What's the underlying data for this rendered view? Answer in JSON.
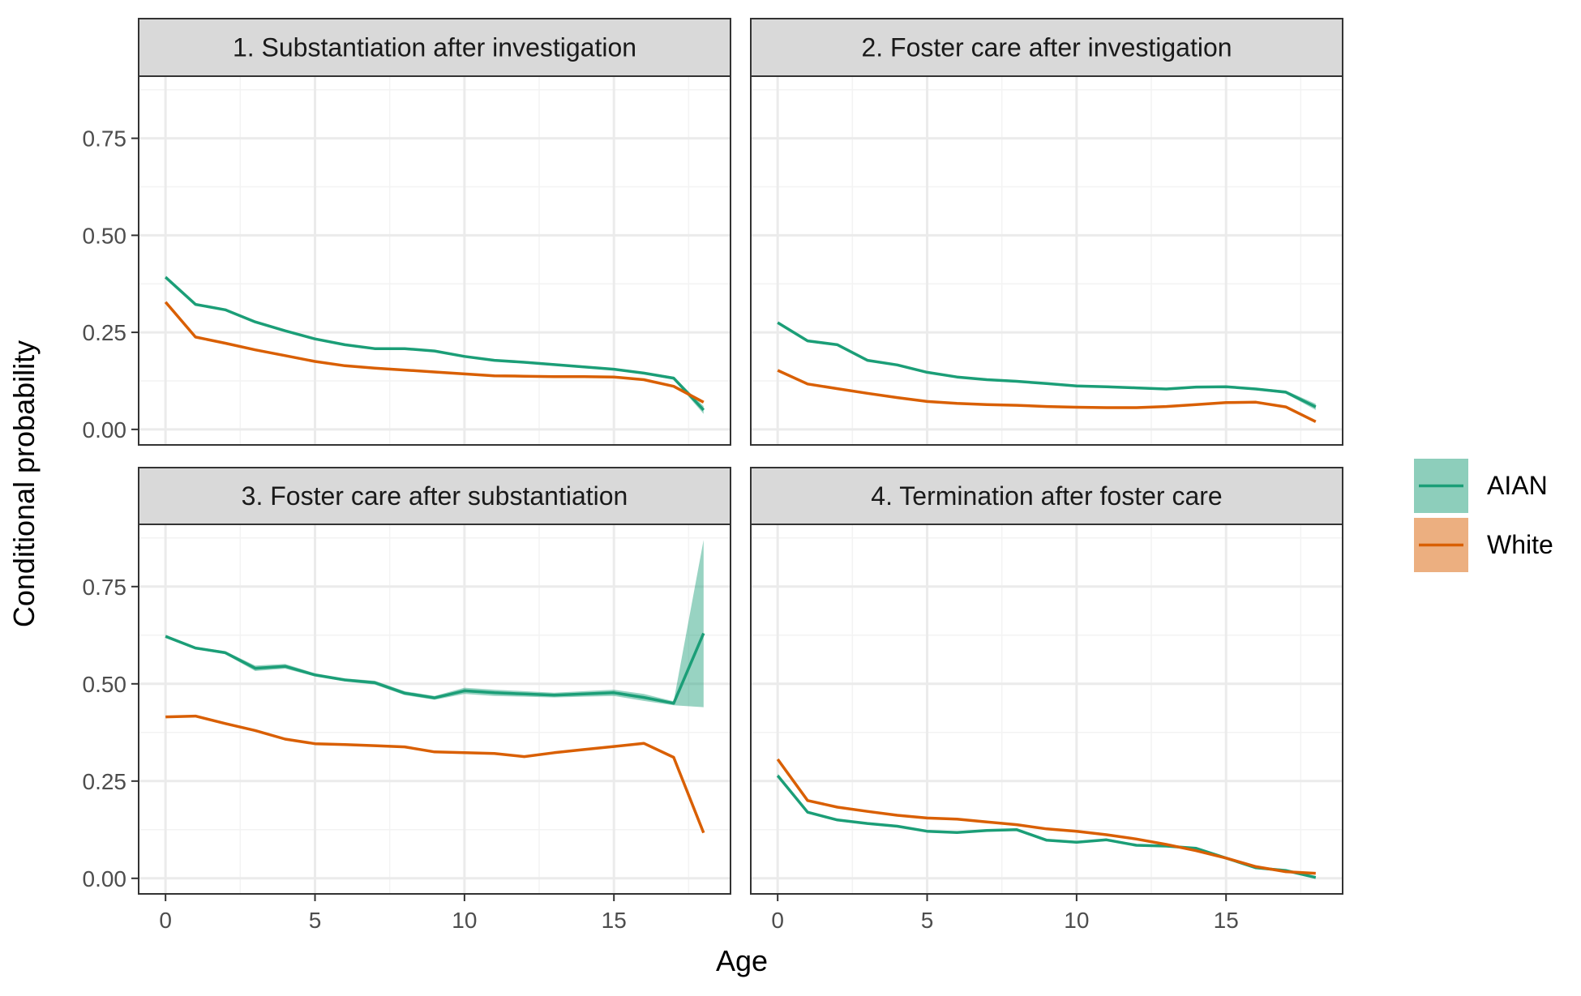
{
  "chart_data": {
    "type": "line",
    "facets_layout": "2x2",
    "xlabel": "Age",
    "ylabel": "Conditional probability",
    "xlim": [
      -0.9,
      18.9
    ],
    "ylim": [
      -0.04,
      0.91
    ],
    "x_ticks": [
      0,
      5,
      10,
      15
    ],
    "x_tick_labels": [
      "0",
      "5",
      "10",
      "15"
    ],
    "y_ticks": [
      0,
      0.25,
      0.5,
      0.75
    ],
    "y_tick_labels": [
      "0.00",
      "0.25",
      "0.50",
      "0.75"
    ],
    "grid": true,
    "legend": {
      "position": "right",
      "entries": [
        {
          "name": "AIAN",
          "color": "#1b9e77"
        },
        {
          "name": "White",
          "color": "#d95f02"
        }
      ]
    },
    "colors": {
      "AIAN": "#1b9e77",
      "White": "#d95f02",
      "panel_border": "#333333",
      "strip_fill": "#d9d9d9",
      "grid_major": "#ebebeb",
      "grid_minor": "#f3f3f3"
    },
    "x": [
      0,
      1,
      2,
      3,
      4,
      5,
      6,
      7,
      8,
      9,
      10,
      11,
      12,
      13,
      14,
      15,
      16,
      17,
      18
    ],
    "facets": [
      {
        "title": "1. Substantiation after investigation",
        "series": [
          {
            "name": "AIAN",
            "values": [
              0.392,
              0.322,
              0.308,
              0.277,
              0.254,
              0.233,
              0.218,
              0.208,
              0.208,
              0.202,
              0.188,
              0.178,
              0.173,
              0.167,
              0.161,
              0.155,
              0.145,
              0.132,
              0.05
            ],
            "lower": [
              0.388,
              0.319,
              0.305,
              0.274,
              0.251,
              0.23,
              0.215,
              0.205,
              0.205,
              0.199,
              0.185,
              0.175,
              0.17,
              0.164,
              0.158,
              0.152,
              0.142,
              0.128,
              0.04
            ],
            "upper": [
              0.396,
              0.325,
              0.311,
              0.28,
              0.257,
              0.236,
              0.221,
              0.211,
              0.211,
              0.205,
              0.191,
              0.181,
              0.176,
              0.17,
              0.164,
              0.158,
              0.148,
              0.136,
              0.06
            ]
          },
          {
            "name": "White",
            "values": [
              0.328,
              0.238,
              0.222,
              0.205,
              0.19,
              0.175,
              0.164,
              0.158,
              0.153,
              0.148,
              0.143,
              0.138,
              0.137,
              0.136,
              0.136,
              0.135,
              0.128,
              0.111,
              0.07
            ]
          }
        ]
      },
      {
        "title": "2. Foster care after investigation",
        "series": [
          {
            "name": "AIAN",
            "values": [
              0.275,
              0.228,
              0.218,
              0.178,
              0.166,
              0.147,
              0.135,
              0.128,
              0.124,
              0.118,
              0.112,
              0.11,
              0.107,
              0.104,
              0.109,
              0.11,
              0.104,
              0.096,
              0.058
            ],
            "lower": [
              0.272,
              0.225,
              0.215,
              0.175,
              0.163,
              0.144,
              0.132,
              0.125,
              0.121,
              0.115,
              0.109,
              0.107,
              0.104,
              0.101,
              0.106,
              0.107,
              0.101,
              0.092,
              0.05
            ],
            "upper": [
              0.278,
              0.231,
              0.221,
              0.181,
              0.169,
              0.15,
              0.138,
              0.131,
              0.127,
              0.121,
              0.115,
              0.113,
              0.11,
              0.107,
              0.112,
              0.113,
              0.107,
              0.1,
              0.066
            ]
          },
          {
            "name": "White",
            "values": [
              0.152,
              0.117,
              0.105,
              0.093,
              0.082,
              0.072,
              0.067,
              0.064,
              0.062,
              0.059,
              0.057,
              0.056,
              0.056,
              0.059,
              0.064,
              0.069,
              0.07,
              0.058,
              0.02
            ]
          }
        ]
      },
      {
        "title": "3. Foster care after substantiation",
        "series": [
          {
            "name": "AIAN",
            "values": [
              0.622,
              0.592,
              0.58,
              0.54,
              0.545,
              0.523,
              0.51,
              0.503,
              0.476,
              0.464,
              0.482,
              0.477,
              0.474,
              0.471,
              0.474,
              0.477,
              0.465,
              0.45,
              0.63
            ],
            "lower": [
              0.618,
              0.589,
              0.576,
              0.533,
              0.539,
              0.519,
              0.506,
              0.498,
              0.471,
              0.459,
              0.474,
              0.469,
              0.467,
              0.465,
              0.467,
              0.469,
              0.456,
              0.445,
              0.44
            ],
            "upper": [
              0.626,
              0.595,
              0.584,
              0.547,
              0.551,
              0.527,
              0.514,
              0.508,
              0.481,
              0.469,
              0.49,
              0.485,
              0.481,
              0.477,
              0.481,
              0.485,
              0.474,
              0.455,
              0.87
            ]
          },
          {
            "name": "White",
            "values": [
              0.415,
              0.417,
              0.398,
              0.38,
              0.358,
              0.346,
              0.344,
              0.341,
              0.338,
              0.325,
              0.323,
              0.321,
              0.313,
              0.323,
              0.331,
              0.339,
              0.347,
              0.311,
              0.117
            ]
          }
        ]
      },
      {
        "title": "4. Termination after foster care",
        "series": [
          {
            "name": "AIAN",
            "values": [
              0.264,
              0.17,
              0.15,
              0.141,
              0.134,
              0.121,
              0.118,
              0.123,
              0.125,
              0.098,
              0.093,
              0.099,
              0.085,
              0.083,
              0.077,
              0.052,
              0.027,
              0.02,
              0.002
            ],
            "lower": [
              0.259,
              0.167,
              0.147,
              0.138,
              0.131,
              0.118,
              0.115,
              0.12,
              0.122,
              0.095,
              0.09,
              0.096,
              0.082,
              0.08,
              0.074,
              0.049,
              0.024,
              0.016,
              0.0
            ],
            "upper": [
              0.269,
              0.173,
              0.153,
              0.144,
              0.137,
              0.124,
              0.121,
              0.126,
              0.128,
              0.101,
              0.096,
              0.102,
              0.088,
              0.086,
              0.08,
              0.055,
              0.03,
              0.024,
              0.006
            ]
          },
          {
            "name": "White",
            "values": [
              0.306,
              0.2,
              0.183,
              0.172,
              0.162,
              0.155,
              0.152,
              0.145,
              0.138,
              0.127,
              0.121,
              0.112,
              0.101,
              0.087,
              0.071,
              0.052,
              0.03,
              0.017,
              0.013
            ]
          }
        ]
      }
    ]
  }
}
